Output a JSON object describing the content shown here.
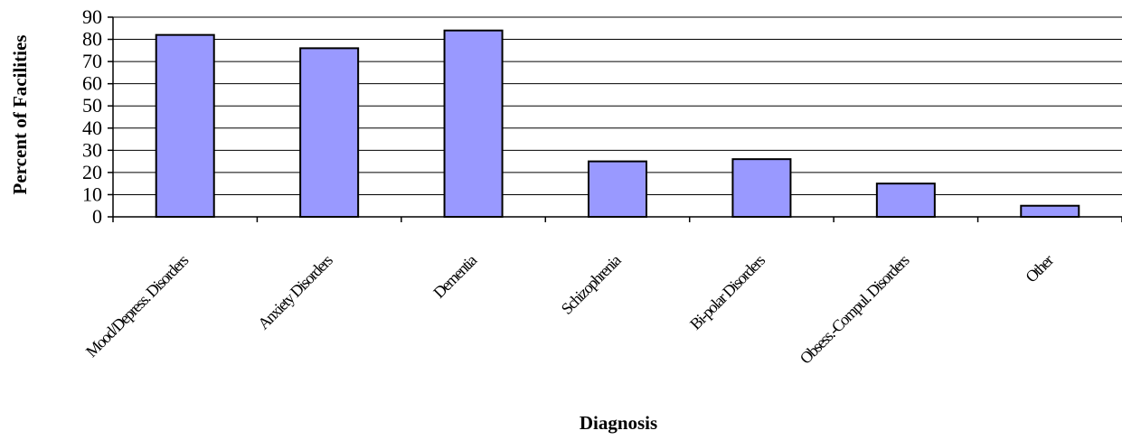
{
  "chart_data": {
    "type": "bar",
    "title": "",
    "xlabel": "Diagnosis",
    "ylabel": "Percent of Facilities",
    "categories": [
      "Mood/Depress. Disorders",
      "Anxiety Disorders",
      "Dementia",
      "Schizophrenia",
      "Bi-polar Disorders",
      "Obsess.-Compul. Disorders",
      "Other"
    ],
    "values": [
      82,
      76,
      84,
      25,
      26,
      15,
      5
    ],
    "ylim": [
      0,
      90
    ],
    "yticks": [
      "0",
      "10",
      "20",
      "30",
      "40",
      "50",
      "60",
      "70",
      "80",
      "90"
    ],
    "grid": true,
    "legend": "none",
    "colors": {
      "bar_fill": "#9999ff",
      "bar_stroke": "#000000",
      "grid": "#000000"
    }
  }
}
